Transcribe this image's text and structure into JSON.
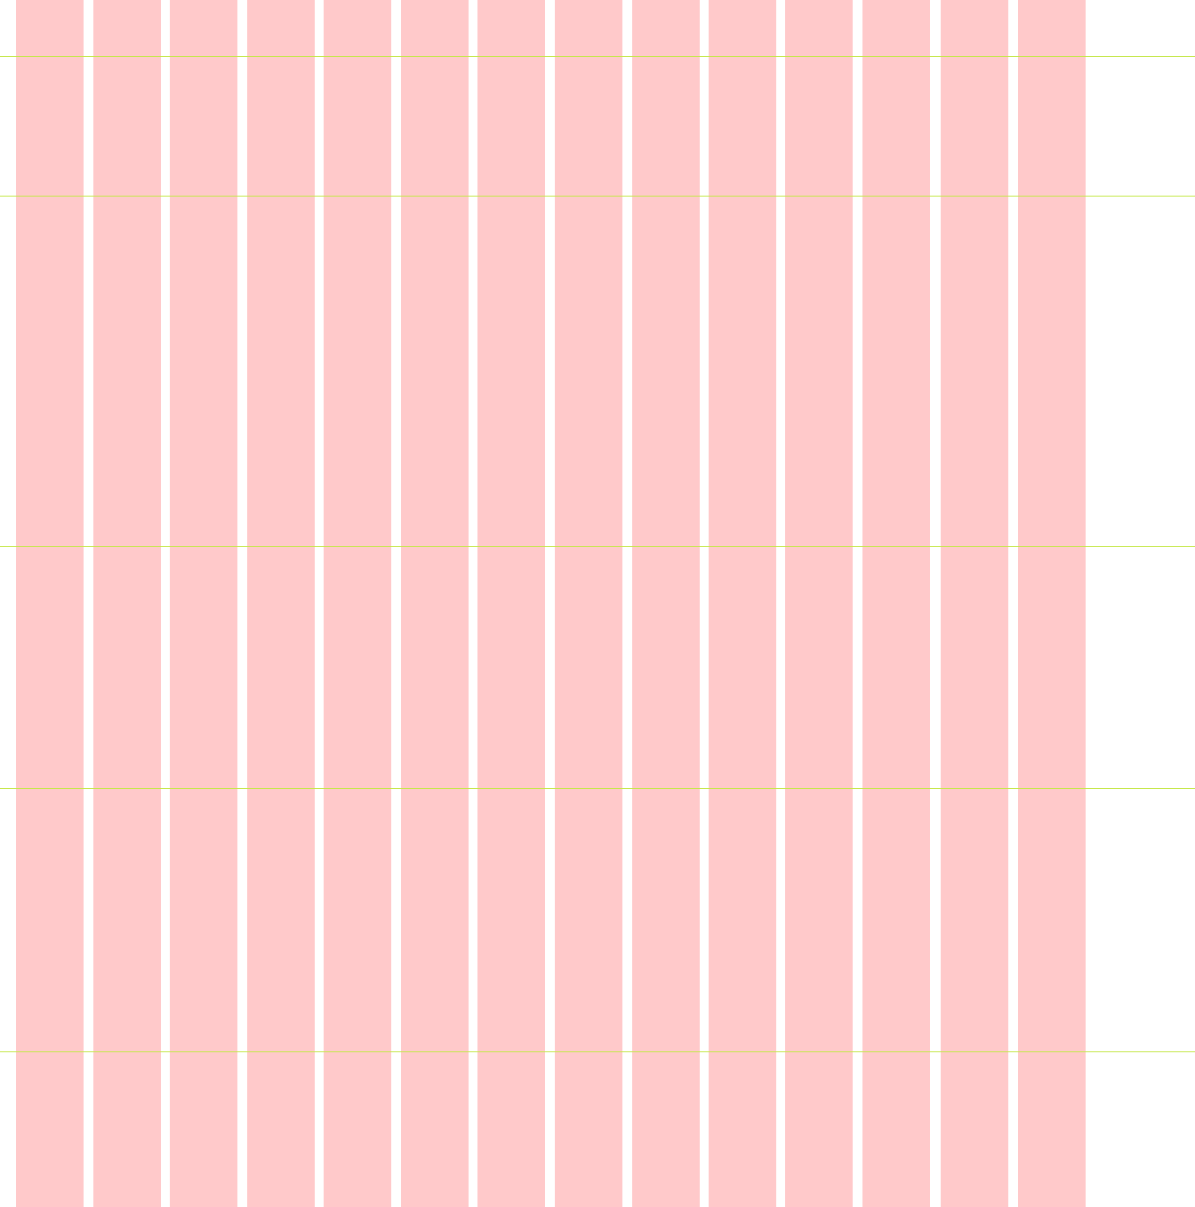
{
  "overlay": {
    "column_count": 14,
    "column_color": "#ffc9ca",
    "baseline_color": "#c5e84a",
    "background_color": "#ffffff",
    "guide_count": 5
  }
}
